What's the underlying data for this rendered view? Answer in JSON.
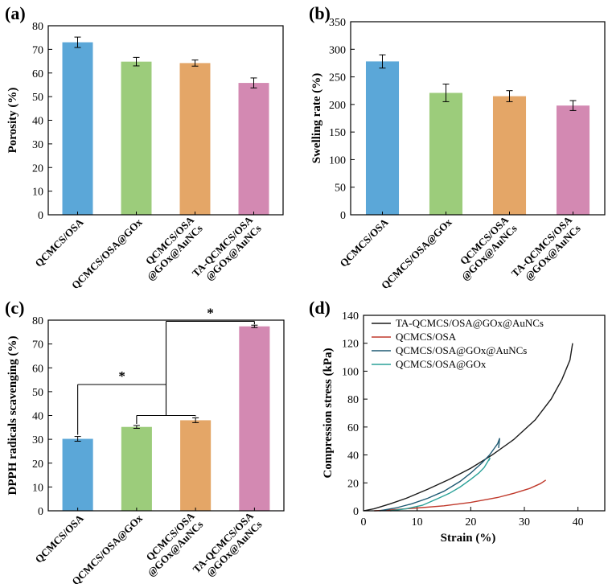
{
  "colors": {
    "blue": "#5ba7d8",
    "green": "#9ccc7b",
    "orange": "#e4a667",
    "pink": "#d389b2"
  },
  "chart_data": [
    {
      "id": "a",
      "panel_label": "(a)",
      "type": "bar",
      "categories": [
        "QCMCS/OSA",
        "QCMCS/OSA@GOx",
        "QCMCS/OSA\n@GOx@AuNCs",
        "TA-QCMCS/OSA\n@GOx@AuNCs"
      ],
      "values": [
        73,
        64.8,
        64.2,
        55.8
      ],
      "errors": [
        2.2,
        1.8,
        1.3,
        2.1
      ],
      "ylabel": "Porosity (%)",
      "ylim": [
        0,
        80
      ],
      "yticks": [
        0,
        10,
        20,
        30,
        40,
        50,
        60,
        70,
        80
      ]
    },
    {
      "id": "b",
      "panel_label": "(b)",
      "type": "bar",
      "categories": [
        "QCMCS/OSA",
        "QCMCS/OSA@GOx",
        "QCMCS/OSA\n@GOx@AuNCs",
        "TA-QCMCS/OSA\n@GOx@AuNCs"
      ],
      "values": [
        278,
        221,
        215,
        198
      ],
      "errors": [
        12,
        16,
        10,
        9
      ],
      "ylabel": "Swelling rate (%)",
      "ylim": [
        0,
        350
      ],
      "yticks": [
        0,
        50,
        100,
        150,
        200,
        250,
        300,
        350
      ]
    },
    {
      "id": "c",
      "panel_label": "(c)",
      "type": "bar",
      "categories": [
        "QCMCS/OSA",
        "QCMCS/OSA@GOx",
        "QCMCS/OSA\n@GOx@AuNCs",
        "TA-QCMCS/OSA\n@GOx@AuNCs"
      ],
      "values": [
        30.2,
        35.2,
        38,
        77.4
      ],
      "errors": [
        1.0,
        0.6,
        1.0,
        0.5
      ],
      "ylabel": "DPPH radicals scavenging (%)",
      "ylim": [
        0,
        80
      ],
      "yticks": [
        0,
        10,
        20,
        30,
        40,
        50,
        60,
        70,
        80
      ],
      "annotations": [
        {
          "text": "*",
          "from_bar": 0,
          "to_bar": "group-1-2",
          "level": 53
        },
        {
          "text": "*",
          "from_bar": "group-0-2",
          "to_bar": 3,
          "level": 79.5
        }
      ]
    },
    {
      "id": "d",
      "panel_label": "(d)",
      "type": "line",
      "xlabel": "Strain (%)",
      "ylabel": "Compression stress (kPa)",
      "xlim": [
        0,
        45
      ],
      "ylim": [
        0,
        140
      ],
      "xticks": [
        0,
        10,
        20,
        30,
        40
      ],
      "yticks": [
        0,
        20,
        40,
        60,
        80,
        100,
        120,
        140
      ],
      "series": [
        {
          "name": "TA-QCMCS/OSA@GOx@AuNCs",
          "color": "#1a1a1a",
          "x": [
            0,
            2,
            5,
            8,
            12,
            16,
            20,
            24,
            28,
            32,
            35,
            37,
            38.5,
            39
          ],
          "y": [
            0,
            1.5,
            5,
            9,
            15.5,
            22.5,
            30.5,
            40,
            51,
            65,
            80,
            94,
            108,
            120
          ]
        },
        {
          "name": "QCMCS/OSA",
          "color": "#c0392b",
          "x": [
            2,
            5,
            10,
            15,
            20,
            25,
            28,
            31,
            33,
            34
          ],
          "y": [
            0,
            0.6,
            2,
            3.6,
            6,
            9.5,
            12.5,
            16,
            19.5,
            22
          ]
        },
        {
          "name": "QCMCS/OSA@GOx@AuNCs",
          "color": "#1f5a73",
          "x": [
            3,
            6,
            9,
            12,
            15,
            18,
            20,
            22,
            23.5,
            25,
            25.4,
            25.2
          ],
          "y": [
            0,
            2,
            5,
            9,
            14,
            21,
            27,
            34,
            40,
            48,
            52,
            45
          ]
        },
        {
          "name": "QCMCS/OSA@GOx",
          "color": "#2aa198",
          "x": [
            5,
            8,
            11,
            14,
            16,
            18,
            20,
            21.5,
            22.5,
            23.3,
            23.6,
            23.4
          ],
          "y": [
            0,
            1.5,
            4,
            9,
            12.5,
            17,
            22.5,
            27,
            31,
            36,
            38,
            36
          ]
        }
      ]
    }
  ]
}
